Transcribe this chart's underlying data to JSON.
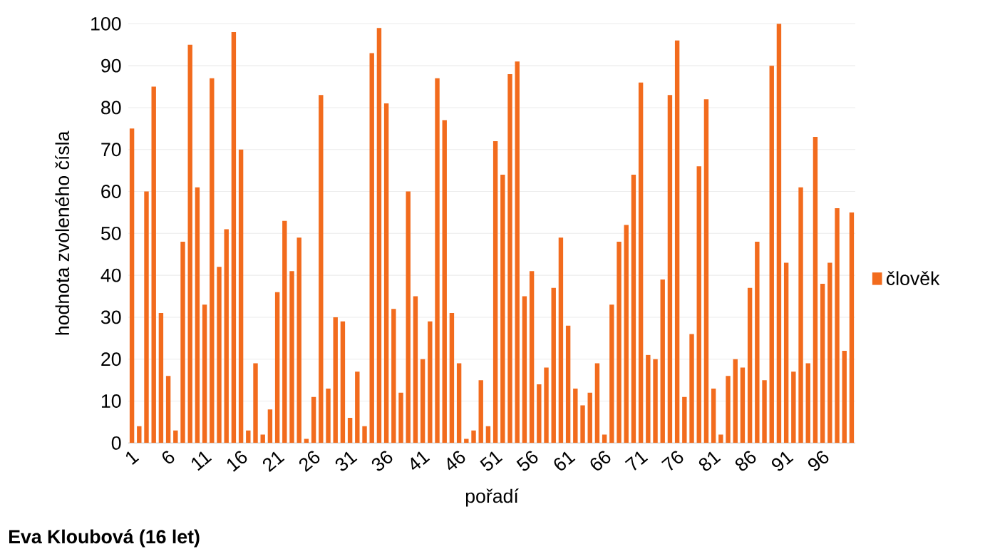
{
  "chart_data": {
    "type": "bar",
    "xlabel": "pořadí",
    "ylabel": "hodnota zvoleného čísla",
    "annotations": [
      "Eva Kloubová (16 let)"
    ],
    "categories": [
      "1",
      null,
      null,
      null,
      null,
      "6",
      null,
      null,
      null,
      null,
      "11",
      null,
      null,
      null,
      null,
      "16",
      null,
      null,
      null,
      null,
      "21",
      null,
      null,
      null,
      null,
      "26",
      null,
      null,
      null,
      null,
      "31",
      null,
      null,
      null,
      null,
      "36",
      null,
      null,
      null,
      null,
      "41",
      null,
      null,
      null,
      null,
      "46",
      null,
      null,
      null,
      null,
      "51",
      null,
      null,
      null,
      null,
      "56",
      null,
      null,
      null,
      null,
      "61",
      null,
      null,
      null,
      null,
      "66",
      null,
      null,
      null,
      null,
      "71",
      null,
      null,
      null,
      null,
      "76",
      null,
      null,
      null,
      null,
      "81",
      null,
      null,
      null,
      null,
      "86",
      null,
      null,
      null,
      null,
      "91",
      null,
      null,
      null,
      null,
      "96",
      null,
      null,
      null,
      null
    ],
    "series": [
      {
        "name": "člověk",
        "color": "#f26b1d",
        "values": [
          75,
          4,
          60,
          85,
          31,
          16,
          3,
          48,
          95,
          61,
          33,
          87,
          42,
          51,
          98,
          70,
          3,
          19,
          2,
          8,
          36,
          53,
          41,
          49,
          1,
          11,
          83,
          13,
          30,
          29,
          6,
          17,
          4,
          93,
          99,
          81,
          32,
          12,
          60,
          35,
          20,
          29,
          87,
          77,
          31,
          19,
          1,
          3,
          15,
          4,
          72,
          64,
          88,
          91,
          35,
          41,
          14,
          18,
          37,
          49,
          28,
          13,
          9,
          12,
          19,
          2,
          33,
          48,
          52,
          64,
          86,
          21,
          20,
          39,
          83,
          96,
          11,
          26,
          66,
          82,
          13,
          2,
          16,
          20,
          18,
          37,
          48,
          15,
          90,
          100,
          43,
          17,
          61,
          19,
          73,
          38,
          43,
          56,
          22,
          55
        ]
      }
    ],
    "ylim": [
      0,
      100
    ],
    "yticks": [
      0,
      10,
      20,
      30,
      40,
      50,
      60,
      70,
      80,
      90,
      100
    ],
    "grid": "y",
    "legend": "right"
  }
}
